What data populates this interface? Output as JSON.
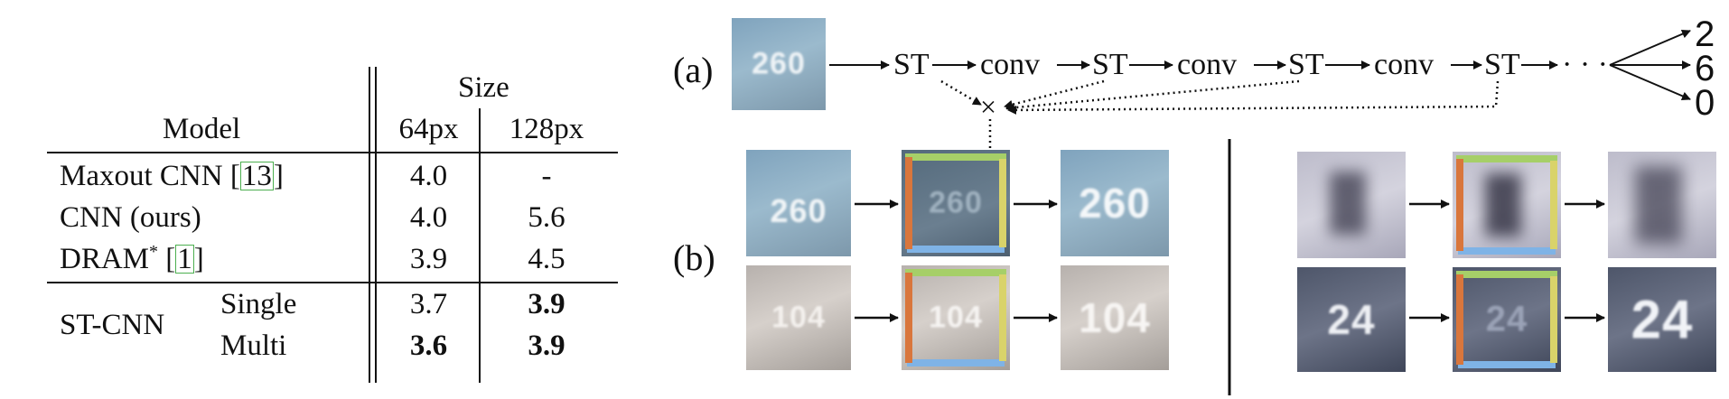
{
  "table": {
    "size_header": "Size",
    "model_header": "Model",
    "col_64": "64px",
    "col_128": "128px",
    "rows": [
      {
        "model": "Maxout CNN [",
        "cite": "13",
        "close": "]",
        "v64": "4.0",
        "v128": "-"
      },
      {
        "model": "CNN (ours)",
        "v64": "4.0",
        "v128": "5.6"
      },
      {
        "model": "DRAM",
        "sup": "*",
        "space": " [",
        "cite": "1",
        "close": "]",
        "v64": "3.9",
        "v128": "4.5"
      }
    ],
    "st_cnn": {
      "label": "ST-CNN",
      "single": {
        "label": "Single",
        "v64": "3.7",
        "v128": "3.9"
      },
      "multi": {
        "label": "Multi",
        "v64": "3.6",
        "v128": "3.9"
      }
    }
  },
  "figure": {
    "panel_a_label": "(a)",
    "panel_b_label": "(b)",
    "pipeline_nodes": [
      "ST",
      "conv",
      "ST",
      "conv",
      "ST",
      "conv",
      "ST",
      "· · ·"
    ],
    "outputs": [
      "2",
      "6",
      "0"
    ],
    "multiply_symbol": "×",
    "patch_texts": {
      "input_a": "260",
      "b_left_top": [
        "260",
        "260",
        "260"
      ],
      "b_left_bottom": [
        "104",
        "104",
        "104"
      ],
      "b_right_top": [
        "",
        "",
        ""
      ],
      "b_right_bottom": [
        "24",
        "24",
        "24"
      ]
    },
    "colors": {
      "frame_top": "#a6cf68",
      "frame_bottom": "#7fb3e6",
      "frame_left": "#d9763c",
      "frame_right": "#d9d36a"
    }
  }
}
